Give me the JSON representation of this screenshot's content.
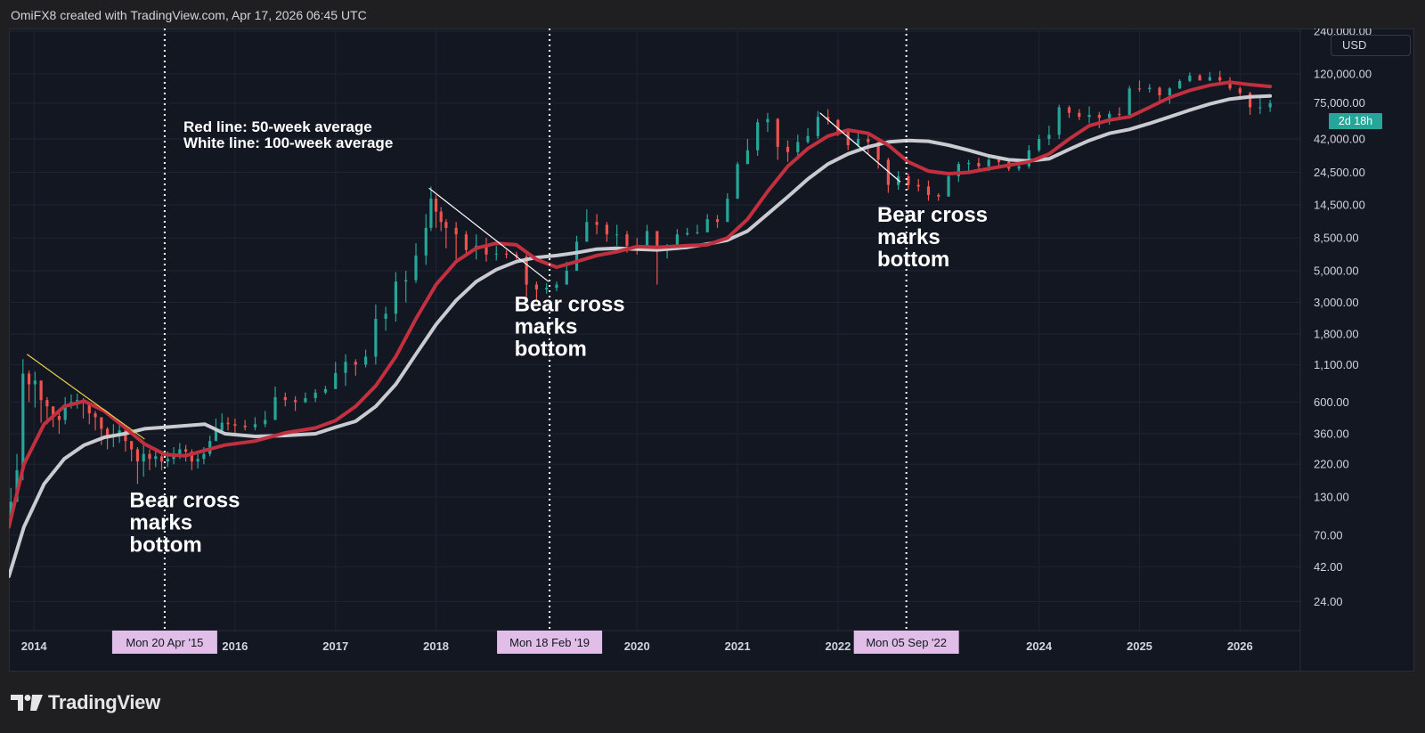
{
  "header": {
    "attribution": "OmiFX8 created with TradingView.com, Apr 17, 2026 06:45 UTC"
  },
  "toolbar": {
    "currency": "USD",
    "bar_countdown": "2d 18h"
  },
  "footer": {
    "logo_text": "TradingView"
  },
  "legend_text": {
    "line1": "Red line: 50-week average",
    "line2": "White line: 100-week average"
  },
  "colors": {
    "background": "#131722",
    "up_candle": "#26a69a",
    "down_candle": "#ef5350",
    "ma50": "#c2303f",
    "ma100": "#c9cbd1",
    "trendline_2014": "#e6d04a",
    "trendline_other": "#ffffff",
    "date_marker": "#e1bee7",
    "countdown_bg": "#26a69a"
  },
  "chart_data": {
    "type": "line",
    "instrument_currency": "USD",
    "y_scale": "log",
    "title": "",
    "grid": true,
    "x_range": [
      2013.75,
      2026.6
    ],
    "y_range": [
      15,
      250000
    ],
    "x_tick_labels": [
      "2014",
      "2016",
      "2017",
      "2018",
      "2020",
      "2021",
      "2022",
      "2024",
      "2025",
      "2026"
    ],
    "x_tick_values": [
      2014.0,
      2016.0,
      2017.0,
      2018.0,
      2020.0,
      2021.0,
      2022.0,
      2024.0,
      2025.0,
      2026.0
    ],
    "y_tick_labels": [
      "240,000.00",
      "120,000.00",
      "75,000.00",
      "42,000.00",
      "24,500.00",
      "14,500.00",
      "8,500.00",
      "5,000.00",
      "3,000.00",
      "1,800.00",
      "1,100.00",
      "600.00",
      "360.00",
      "220.00",
      "130.00",
      "70.00",
      "42.00",
      "24.00"
    ],
    "y_tick_values": [
      240000,
      120000,
      75000,
      42000,
      24500,
      14500,
      8500,
      5000,
      3000,
      1800,
      1100,
      600,
      360,
      220,
      130,
      70,
      42,
      24
    ],
    "series": [
      {
        "name": "Red line: 50-week average",
        "x": [
          2013.75,
          2013.9,
          2014.1,
          2014.3,
          2014.5,
          2014.7,
          2014.9,
          2015.1,
          2015.3,
          2015.5,
          2015.7,
          2015.9,
          2016.2,
          2016.5,
          2016.8,
          2017.0,
          2017.2,
          2017.4,
          2017.6,
          2017.8,
          2018.0,
          2018.2,
          2018.4,
          2018.6,
          2018.8,
          2019.0,
          2019.2,
          2019.4,
          2019.6,
          2019.8,
          2020.0,
          2020.2,
          2020.5,
          2020.7,
          2020.9,
          2021.1,
          2021.3,
          2021.5,
          2021.7,
          2021.9,
          2022.1,
          2022.3,
          2022.5,
          2022.7,
          2022.9,
          2023.1,
          2023.3,
          2023.5,
          2023.7,
          2023.9,
          2024.1,
          2024.3,
          2024.5,
          2024.7,
          2024.9,
          2025.1,
          2025.3,
          2025.5,
          2025.7,
          2025.9,
          2026.1,
          2026.3
        ],
        "values": [
          80,
          220,
          420,
          560,
          610,
          520,
          400,
          305,
          258,
          252,
          275,
          300,
          320,
          365,
          395,
          445,
          560,
          780,
          1250,
          2300,
          4000,
          5800,
          7200,
          7800,
          7600,
          6000,
          5300,
          5800,
          6400,
          6800,
          7400,
          7300,
          7500,
          7600,
          8500,
          11500,
          18000,
          27000,
          36000,
          44000,
          48500,
          46000,
          38000,
          29000,
          25000,
          24000,
          24500,
          26000,
          27500,
          29000,
          33000,
          42000,
          52000,
          57000,
          60000,
          70000,
          82000,
          92000,
          100000,
          105000,
          101000,
          98000
        ]
      },
      {
        "name": "White line: 100-week average",
        "x": [
          2013.75,
          2013.9,
          2014.1,
          2014.3,
          2014.5,
          2014.7,
          2014.9,
          2015.1,
          2015.3,
          2015.5,
          2015.7,
          2015.9,
          2016.2,
          2016.5,
          2016.8,
          2017.0,
          2017.2,
          2017.4,
          2017.6,
          2017.8,
          2018.0,
          2018.2,
          2018.4,
          2018.6,
          2018.8,
          2019.0,
          2019.2,
          2019.4,
          2019.6,
          2019.8,
          2020.0,
          2020.2,
          2020.5,
          2020.7,
          2020.9,
          2021.1,
          2021.3,
          2021.5,
          2021.7,
          2021.9,
          2022.1,
          2022.3,
          2022.5,
          2022.7,
          2022.9,
          2023.1,
          2023.3,
          2023.5,
          2023.7,
          2023.9,
          2024.1,
          2024.3,
          2024.5,
          2024.7,
          2024.9,
          2025.1,
          2025.3,
          2025.5,
          2025.7,
          2025.9,
          2026.1,
          2026.3
        ],
        "values": [
          36,
          80,
          160,
          240,
          300,
          340,
          360,
          390,
          400,
          410,
          420,
          360,
          345,
          350,
          360,
          400,
          440,
          560,
          800,
          1300,
          2100,
          3100,
          4200,
          5100,
          5800,
          6200,
          6400,
          6700,
          7100,
          7200,
          7100,
          7000,
          7300,
          7700,
          8200,
          9500,
          12500,
          16500,
          22000,
          28000,
          33000,
          37000,
          40000,
          41000,
          40500,
          38000,
          35000,
          32000,
          30000,
          29500,
          30500,
          35500,
          41000,
          46000,
          49000,
          54000,
          60000,
          67000,
          74000,
          80000,
          83000,
          84000
        ]
      }
    ],
    "candles": {
      "x": [
        2013.77,
        2013.83,
        2013.89,
        2013.95,
        2014.01,
        2014.07,
        2014.13,
        2014.19,
        2014.25,
        2014.31,
        2014.37,
        2014.43,
        2014.49,
        2014.55,
        2014.61,
        2014.67,
        2014.73,
        2014.79,
        2014.85,
        2014.91,
        2014.97,
        2015.03,
        2015.09,
        2015.15,
        2015.21,
        2015.27,
        2015.33,
        2015.39,
        2015.45,
        2015.51,
        2015.57,
        2015.63,
        2015.69,
        2015.75,
        2015.81,
        2015.87,
        2015.93,
        2016.0,
        2016.1,
        2016.2,
        2016.3,
        2016.4,
        2016.5,
        2016.6,
        2016.7,
        2016.8,
        2016.9,
        2017.0,
        2017.1,
        2017.2,
        2017.3,
        2017.4,
        2017.5,
        2017.6,
        2017.7,
        2017.8,
        2017.9,
        2017.95,
        2018.0,
        2018.05,
        2018.1,
        2018.2,
        2018.3,
        2018.4,
        2018.5,
        2018.6,
        2018.7,
        2018.8,
        2018.9,
        2019.0,
        2019.1,
        2019.2,
        2019.3,
        2019.4,
        2019.5,
        2019.6,
        2019.7,
        2019.8,
        2019.9,
        2020.0,
        2020.1,
        2020.2,
        2020.3,
        2020.4,
        2020.5,
        2020.6,
        2020.7,
        2020.8,
        2020.9,
        2021.0,
        2021.1,
        2021.2,
        2021.3,
        2021.4,
        2021.5,
        2021.6,
        2021.7,
        2021.8,
        2021.9,
        2022.0,
        2022.1,
        2022.2,
        2022.3,
        2022.4,
        2022.5,
        2022.6,
        2022.7,
        2022.8,
        2022.9,
        2023.0,
        2023.1,
        2023.2,
        2023.3,
        2023.4,
        2023.5,
        2023.6,
        2023.7,
        2023.8,
        2023.9,
        2024.0,
        2024.1,
        2024.2,
        2024.3,
        2024.4,
        2024.5,
        2024.6,
        2024.7,
        2024.8,
        2024.9,
        2025.0,
        2025.1,
        2025.2,
        2025.3,
        2025.4,
        2025.5,
        2025.6,
        2025.7,
        2025.8,
        2025.9,
        2026.0,
        2026.1,
        2026.2,
        2026.3
      ],
      "close": [
        120,
        200,
        950,
        800,
        850,
        620,
        560,
        480,
        450,
        580,
        600,
        620,
        590,
        500,
        470,
        390,
        340,
        350,
        380,
        320,
        280,
        230,
        260,
        240,
        250,
        230,
        240,
        260,
        280,
        270,
        230,
        240,
        260,
        320,
        380,
        430,
        420,
        410,
        400,
        420,
        450,
        650,
        620,
        600,
        640,
        700,
        740,
        960,
        1150,
        1100,
        1250,
        2300,
        2500,
        4200,
        4300,
        6400,
        10000,
        16000,
        13000,
        11000,
        10000,
        9000,
        7000,
        7500,
        6500,
        6600,
        6500,
        6300,
        4000,
        3700,
        3800,
        4000,
        5000,
        8000,
        11000,
        10500,
        9000,
        9000,
        7500,
        7200,
        9500,
        7000,
        7000,
        9000,
        9200,
        9300,
        11500,
        11000,
        16000,
        28000,
        35000,
        55000,
        58000,
        37000,
        34000,
        40000,
        44000,
        60000,
        57000,
        47000,
        38000,
        42000,
        40000,
        30000,
        20000,
        23000,
        20000,
        19500,
        17000,
        16600,
        23000,
        28000,
        28500,
        27000,
        30000,
        29000,
        26000,
        27000,
        35000,
        42000,
        45000,
        70000,
        64000,
        60000,
        62000,
        59000,
        63000,
        62000,
        95000,
        94000,
        96000,
        85000,
        95000,
        107000,
        117000,
        108000,
        114000,
        108000,
        95000,
        88000,
        70000,
        70000,
        75000
      ],
      "high": [
        150,
        260,
        1200,
        1000,
        980,
        700,
        650,
        560,
        520,
        650,
        680,
        690,
        640,
        560,
        520,
        450,
        400,
        420,
        420,
        380,
        320,
        290,
        300,
        280,
        270,
        260,
        270,
        290,
        310,
        300,
        280,
        260,
        290,
        350,
        460,
        500,
        470,
        460,
        450,
        470,
        520,
        770,
        700,
        660,
        700,
        740,
        780,
        1150,
        1300,
        1200,
        1400,
        2900,
        2800,
        4900,
        5000,
        7800,
        12500,
        19500,
        17000,
        14000,
        11500,
        11000,
        9500,
        9000,
        8500,
        7500,
        7000,
        6800,
        6500,
        4200,
        4100,
        4200,
        5800,
        8800,
        13500,
        12500,
        11000,
        10500,
        9500,
        8500,
        10500,
        9500,
        7700,
        9800,
        10000,
        10500,
        12500,
        12300,
        17500,
        29000,
        42000,
        58000,
        64000,
        59000,
        41000,
        45000,
        50000,
        66000,
        68000,
        58000,
        48000,
        47000,
        47000,
        40000,
        31000,
        25000,
        24000,
        22000,
        21500,
        17500,
        24000,
        29000,
        30000,
        31000,
        31500,
        31500,
        29500,
        28000,
        38000,
        45000,
        52000,
        73000,
        72000,
        68000,
        71000,
        65000,
        66000,
        70000,
        99000,
        108000,
        102000,
        98000,
        97000,
        110000,
        123000,
        120000,
        124000,
        126000,
        114000,
        98000,
        90000,
        82000,
        79000
      ],
      "low": [
        90,
        120,
        170,
        600,
        550,
        430,
        420,
        400,
        360,
        420,
        540,
        540,
        460,
        420,
        380,
        300,
        280,
        290,
        310,
        270,
        230,
        160,
        180,
        200,
        210,
        200,
        210,
        220,
        240,
        230,
        200,
        205,
        220,
        250,
        320,
        370,
        380,
        350,
        380,
        380,
        400,
        500,
        560,
        520,
        590,
        600,
        680,
        750,
        780,
        920,
        1050,
        1100,
        1900,
        2200,
        3000,
        4100,
        5500,
        9500,
        10000,
        9500,
        7200,
        6000,
        6500,
        6000,
        5800,
        5900,
        6100,
        6000,
        3200,
        3100,
        3450,
        3600,
        4000,
        5000,
        8000,
        9000,
        8000,
        7500,
        6700,
        6500,
        7000,
        4000,
        6100,
        8300,
        8800,
        9000,
        10000,
        10000,
        11000,
        16000,
        28000,
        32000,
        47000,
        30000,
        29000,
        30000,
        39000,
        42000,
        53000,
        44000,
        35000,
        37000,
        33000,
        26000,
        17600,
        18500,
        18500,
        18000,
        15500,
        15500,
        16500,
        21000,
        25000,
        25000,
        25000,
        26000,
        25000,
        25000,
        26000,
        34000,
        38000,
        42000,
        59000,
        57000,
        54000,
        50000,
        53000,
        59000,
        60000,
        90000,
        89000,
        76000,
        74000,
        94000,
        105000,
        108000,
        107000,
        104000,
        92000,
        82000,
        62000,
        63000,
        65000
      ]
    },
    "trendlines": [
      {
        "from_x": 2013.93,
        "from_y": 1300,
        "to_x": 2015.1,
        "to_y": 330
      },
      {
        "from_x": 2017.93,
        "from_y": 19000,
        "to_x": 2019.12,
        "to_y": 4200
      },
      {
        "from_x": 2021.82,
        "from_y": 64000,
        "to_x": 2022.62,
        "to_y": 21000
      }
    ],
    "vertical_markers": [
      {
        "x": 2015.3,
        "label": "Mon 20 Apr '15"
      },
      {
        "x": 2019.13,
        "label": "Mon 18 Feb '19"
      },
      {
        "x": 2022.68,
        "label": "Mon 05 Sep '22"
      }
    ],
    "annotations": [
      {
        "text": [
          "Bear cross",
          "marks",
          "bottom"
        ],
        "anchor_x": 2014.95,
        "anchor_y": 110
      },
      {
        "text": [
          "Bear cross",
          "marks",
          "bottom"
        ],
        "anchor_x": 2018.78,
        "anchor_y": 2600
      },
      {
        "text": [
          "Bear cross",
          "marks",
          "bottom"
        ],
        "anchor_x": 2022.39,
        "anchor_y": 11000
      }
    ]
  }
}
